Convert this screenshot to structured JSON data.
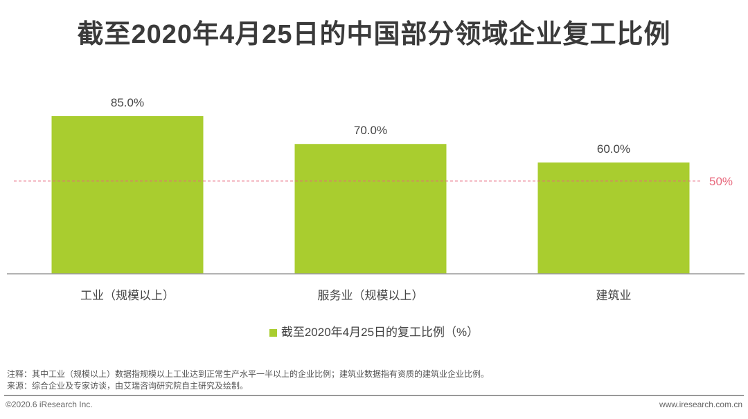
{
  "chart_data": {
    "type": "bar",
    "title": "截至2020年4月25日的中国部分领域企业复工比例",
    "categories": [
      "工业（规模以上）",
      "服务业（规模以上）",
      "建筑业"
    ],
    "values": [
      85.0,
      70.0,
      60.0
    ],
    "value_labels": [
      "85.0%",
      "70.0%",
      "60.0%"
    ],
    "series_name": "截至2020年4月25日的复工比例（%）",
    "reference_line": {
      "value": 50,
      "label": "50%",
      "color": "#e8697d"
    },
    "bar_color": "#a9cd2f",
    "ylim": [
      0,
      100
    ],
    "xlabel": "",
    "ylabel": "",
    "grid": false,
    "legend_position": "bottom"
  },
  "notes": {
    "note": "注释：其中工业（规模以上）数据指规模以上工业达到正常生产水平一半以上的企业比例；建筑业数据指有资质的建筑业企业比例。",
    "source": "来源：综合企业及专家访谈，由艾瑞咨询研究院自主研究及绘制。"
  },
  "footer": {
    "copyright": "©2020.6 iResearch Inc.",
    "website": "www.iresearch.com.cn"
  }
}
